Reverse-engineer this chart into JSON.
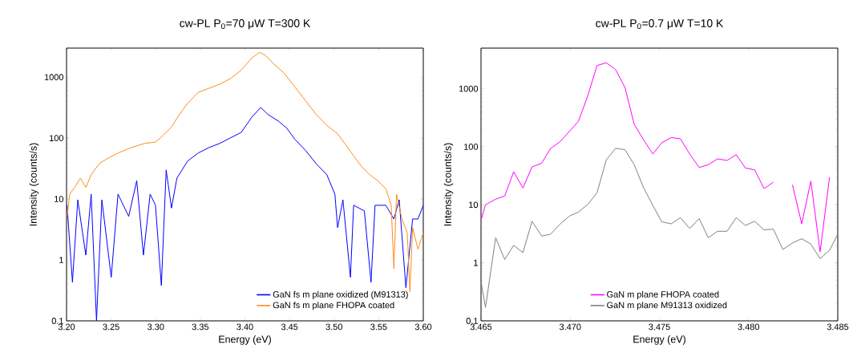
{
  "chart_data": [
    {
      "type": "line",
      "title": "cw-PL P$_{0}$=70 μW T=300 K",
      "xlabel": "Energy (eV)",
      "ylabel": "Intensity (counts/s)",
      "log": "y",
      "legend": "bottom right",
      "xlim": [
        3.2,
        3.6
      ],
      "ylim": [
        0.1,
        3000
      ],
      "xticks": [
        {
          "value": 3.2,
          "label": "3.20"
        },
        {
          "value": 3.25,
          "label": "3.25"
        },
        {
          "value": 3.3,
          "label": "3.30"
        },
        {
          "value": 3.35,
          "label": "3.35"
        },
        {
          "value": 3.4,
          "label": "3.40"
        },
        {
          "value": 3.45,
          "label": "3.45"
        },
        {
          "value": 3.5,
          "label": "3.50"
        },
        {
          "value": 3.55,
          "label": "3.55"
        },
        {
          "value": 3.6,
          "label": "3.60"
        }
      ],
      "yticks": [
        0.1,
        1,
        10,
        100,
        1000
      ],
      "series": [
        {
          "name": "GaN fs m plane oxidized (M91313)",
          "color": "#0000ff",
          "x": [
            3.2006,
            3.2066,
            3.2126,
            3.2216,
            3.2276,
            3.2336,
            3.2396,
            3.2501,
            3.2577,
            3.2697,
            3.2787,
            3.2862,
            3.2937,
            3.2997,
            3.3063,
            3.3117,
            3.3177,
            3.3237,
            3.3357,
            3.3477,
            3.3598,
            3.3718,
            3.3838,
            3.3958,
            3.4078,
            3.4177,
            3.4258,
            3.4378,
            3.4468,
            3.4559,
            3.4679,
            3.4799,
            3.4919,
            3.5009,
            3.5039,
            3.5099,
            3.5183,
            3.5219,
            3.5339,
            3.5414,
            3.5459,
            3.558,
            3.567,
            3.573,
            3.5805,
            3.588,
            3.594,
            3.6
          ],
          "values": [
            7.9,
            0.43,
            9.7,
            1.2,
            12,
            0.1,
            9.7,
            0.52,
            12,
            5.2,
            20,
            1.2,
            12,
            7.9,
            0.38,
            30,
            7.1,
            22,
            42,
            57,
            70,
            82,
            101,
            124,
            221,
            318,
            245,
            189,
            146,
            96,
            63,
            38,
            25,
            12,
            3.4,
            9.7,
            0.52,
            7.9,
            6.4,
            0.43,
            7.9,
            7.9,
            4.7,
            9.7,
            0.35,
            4.7,
            4.7,
            7.9
          ]
        },
        {
          "name": "GaN fs m plane FHOPA coated",
          "color": "#ff8c1a",
          "x": [
            3.2006,
            3.2036,
            3.2096,
            3.2156,
            3.2216,
            3.2276,
            3.2366,
            3.2456,
            3.2577,
            3.2727,
            3.2877,
            3.2997,
            3.3087,
            3.3177,
            3.3267,
            3.3357,
            3.3477,
            3.3598,
            3.3718,
            3.3838,
            3.3958,
            3.4078,
            3.4162,
            3.4228,
            3.4318,
            3.4438,
            3.4559,
            3.4679,
            3.4799,
            3.4919,
            3.5039,
            3.5129,
            3.5219,
            3.5309,
            3.5399,
            3.5489,
            3.558,
            3.564,
            3.567,
            3.57,
            3.576,
            3.582,
            3.585,
            3.588,
            3.594,
            3.6
          ],
          "values": [
            5.2,
            12,
            16,
            22,
            15.5,
            25,
            38,
            46,
            57,
            70,
            82,
            86,
            112,
            153,
            245,
            372,
            564,
            659,
            771,
            948,
            1300,
            2070,
            2550,
            2300,
            1680,
            1170,
            695,
            412,
            245,
            161,
            118,
            78,
            51,
            34,
            25,
            20,
            14.7,
            7.9,
            0.72,
            12,
            4.7,
            2.8,
            0.3,
            3.4,
            1.5,
            2.8
          ]
        }
      ]
    },
    {
      "type": "line",
      "title": "cw-PL P$_{0}$=0.7 μW T=10 K",
      "xlabel": "Energy (eV)",
      "ylabel": "Intensity (counts/s)",
      "log": "y",
      "legend": "bottom",
      "xlim": [
        3.465,
        3.485
      ],
      "ylim": [
        0.1,
        5000
      ],
      "xticks": [
        {
          "value": 3.465,
          "label": "3.465"
        },
        {
          "value": 3.47,
          "label": "3.470"
        },
        {
          "value": 3.475,
          "label": "3.475"
        },
        {
          "value": 3.48,
          "label": "3.480"
        },
        {
          "value": 3.485,
          "label": "3.485"
        }
      ],
      "yticks": [
        0.1,
        1,
        10,
        100,
        1000
      ],
      "series": [
        {
          "name": "GaN m plane FHOPA coated",
          "color": "#ff00ff",
          "x": [
            3.465,
            3.46525,
            3.46582,
            3.46633,
            3.46683,
            3.46735,
            3.46786,
            3.4684,
            3.46889,
            3.46942,
            3.46996,
            3.47046,
            3.47099,
            3.4715,
            3.47202,
            3.47254,
            3.47307,
            3.47359,
            3.4741,
            3.47463,
            3.47513,
            3.47566,
            3.47618,
            3.4767,
            3.47723,
            3.47774,
            3.47826,
            3.47879,
            3.47931,
            3.47982,
            3.48034,
            3.48087,
            3.48139,
            3.48192,
            3.48246,
            3.48298,
            3.48349,
            3.48401,
            3.48454
          ],
          "values": [
            5.4,
            10,
            12.5,
            14.2,
            37,
            19.5,
            45,
            52,
            93,
            121,
            185,
            274,
            762,
            2500,
            2800,
            2140,
            1050,
            243,
            134,
            75,
            117,
            144,
            137,
            75,
            44,
            49,
            62,
            58,
            73,
            43,
            40,
            19,
            24.5,
            null,
            22,
            4.7,
            25.6,
            1.55,
            30
          ]
        },
        {
          "name": "GaN m plane M91313 oxidized",
          "color": "#808080",
          "x": [
            3.465,
            3.46525,
            3.46582,
            3.46633,
            3.46683,
            3.46735,
            3.46786,
            3.4684,
            3.46889,
            3.46942,
            3.46996,
            3.47046,
            3.47099,
            3.4715,
            3.47202,
            3.47254,
            3.47307,
            3.47359,
            3.4741,
            3.47463,
            3.47513,
            3.47566,
            3.47618,
            3.4767,
            3.47723,
            3.47774,
            3.47826,
            3.47879,
            3.47931,
            3.47982,
            3.48034,
            3.48087,
            3.48139,
            3.48192,
            3.48246,
            3.48298,
            3.48349,
            3.48401,
            3.48454,
            3.485
          ],
          "values": [
            0.47,
            0.17,
            2.7,
            1.14,
            2.0,
            1.5,
            5.2,
            2.9,
            3.1,
            4.6,
            6.4,
            7.5,
            10.2,
            16,
            59,
            94,
            89,
            49,
            20,
            9.8,
            5.1,
            4.7,
            6.0,
            3.9,
            5.8,
            2.7,
            3.5,
            3.5,
            6.0,
            4.4,
            5.2,
            3.7,
            3.8,
            1.7,
            2.2,
            2.6,
            2.1,
            1.18,
            1.65,
            3.1
          ]
        }
      ]
    }
  ]
}
